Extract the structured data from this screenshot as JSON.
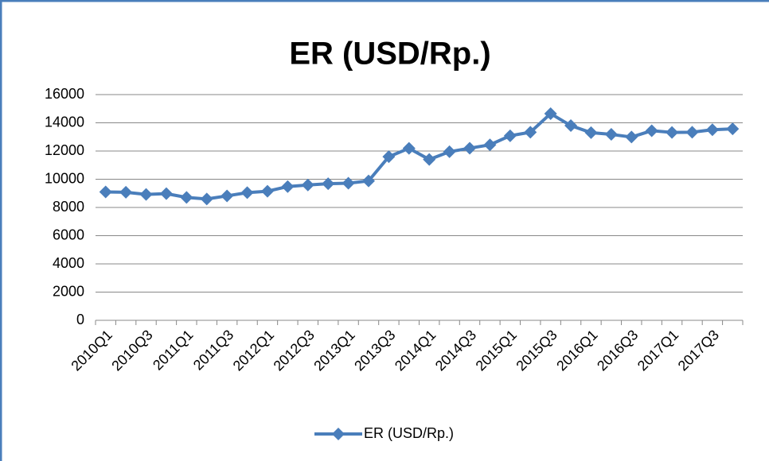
{
  "chart_data": {
    "type": "line",
    "title": "ER (USD/Rp.)",
    "categories": [
      "2010Q1",
      null,
      "2010Q3",
      null,
      "2011Q1",
      null,
      "2011Q3",
      null,
      "2012Q1",
      null,
      "2012Q3",
      null,
      "2013Q1",
      null,
      "2013Q3",
      null,
      "2014Q1",
      null,
      "2014Q3",
      null,
      "2015Q1",
      null,
      "2015Q3",
      null,
      "2016Q1",
      null,
      "2016Q3",
      null,
      "2017Q1",
      null,
      "2017Q3",
      null
    ],
    "series": [
      {
        "name": "ER (USD/Rp.)",
        "color": "#4a7ebb",
        "values": [
          9100,
          9080,
          8920,
          8980,
          8710,
          8600,
          8820,
          9050,
          9150,
          9480,
          9590,
          9680,
          9720,
          9880,
          11600,
          12190,
          11400,
          11950,
          12200,
          12440,
          13080,
          13330,
          14650,
          13800,
          13300,
          13180,
          12990,
          13440,
          13320,
          13330,
          13510,
          13570
        ]
      }
    ],
    "ylim": [
      0,
      16000
    ],
    "yticks": [
      0,
      2000,
      4000,
      6000,
      8000,
      10000,
      12000,
      14000,
      16000
    ],
    "grid": true,
    "legend": "bottom"
  }
}
